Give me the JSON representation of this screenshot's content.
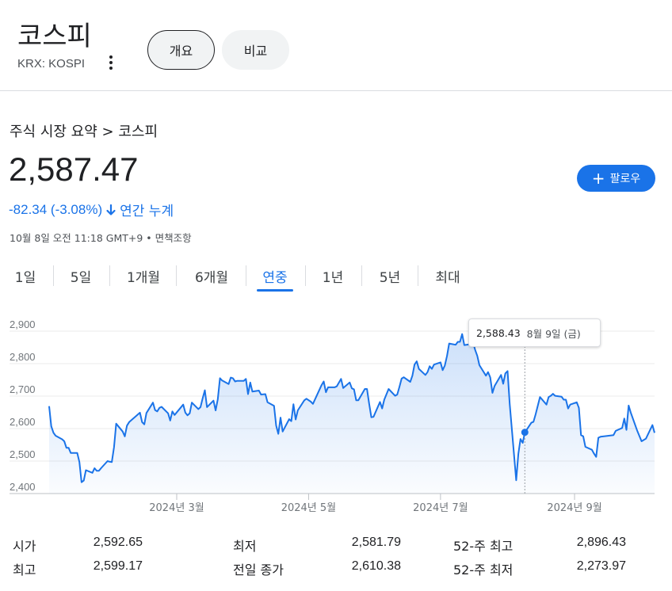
{
  "header": {
    "title": "코스피",
    "ticker": "KRX: KOSPI",
    "tabs": [
      {
        "label": "개요",
        "active": true
      },
      {
        "label": "비교",
        "active": false
      }
    ]
  },
  "summary": {
    "breadcrumb": "주식 시장 요약 > 코스피",
    "price": "2,587.47",
    "change": "-82.34 (-3.08%)",
    "change_period": "연간 누계",
    "timestamp": "10월 8일 오전 11:18 GMT+9 • 면책조항",
    "follow_label": "팔로우"
  },
  "ranges": [
    "1일",
    "5일",
    "1개월",
    "6개월",
    "연중",
    "1년",
    "5년",
    "최대"
  ],
  "active_range": "연중",
  "tooltip": {
    "value": "2,588.43",
    "date": "8월 9일 (금)"
  },
  "colors": {
    "accent": "#1a73e8",
    "line": "#1a73e8",
    "text": "#202124"
  },
  "chart_data": {
    "type": "area",
    "x_ticks": [
      "2024년 3월",
      "2024년 5월",
      "2024년 7월",
      "2024년 9월"
    ],
    "y_ticks": [
      "2,900",
      "2,800",
      "2,700",
      "2,600",
      "2,500",
      "2,400"
    ],
    "ylim": [
      2400,
      2900
    ],
    "grid": true,
    "x_range": [
      "2024-01-02",
      "2024-10-08"
    ],
    "x_tick_dates": [
      "2024-03-01",
      "2024-05-01",
      "2024-07-01",
      "2024-09-01"
    ],
    "highlight": {
      "date": "2024-08-09",
      "value": 2588.43
    },
    "points": [
      [
        "2024-01-02",
        2669
      ],
      [
        "2024-01-03",
        2607
      ],
      [
        "2024-01-04",
        2587
      ],
      [
        "2024-01-05",
        2578
      ],
      [
        "2024-01-08",
        2567
      ],
      [
        "2024-01-09",
        2561
      ],
      [
        "2024-01-10",
        2541
      ],
      [
        "2024-01-11",
        2541
      ],
      [
        "2024-01-12",
        2525
      ],
      [
        "2024-01-15",
        2525
      ],
      [
        "2024-01-16",
        2497
      ],
      [
        "2024-01-17",
        2435
      ],
      [
        "2024-01-18",
        2440
      ],
      [
        "2024-01-19",
        2472
      ],
      [
        "2024-01-22",
        2464
      ],
      [
        "2024-01-23",
        2478
      ],
      [
        "2024-01-24",
        2470
      ],
      [
        "2024-01-25",
        2470
      ],
      [
        "2024-01-26",
        2478
      ],
      [
        "2024-01-29",
        2500
      ],
      [
        "2024-01-30",
        2498
      ],
      [
        "2024-01-31",
        2497
      ],
      [
        "2024-02-01",
        2543
      ],
      [
        "2024-02-02",
        2615
      ],
      [
        "2024-02-05",
        2591
      ],
      [
        "2024-02-06",
        2576
      ],
      [
        "2024-02-07",
        2609
      ],
      [
        "2024-02-08",
        2620
      ],
      [
        "2024-02-13",
        2649
      ],
      [
        "2024-02-14",
        2620
      ],
      [
        "2024-02-15",
        2613
      ],
      [
        "2024-02-16",
        2648
      ],
      [
        "2024-02-19",
        2680
      ],
      [
        "2024-02-20",
        2657
      ],
      [
        "2024-02-21",
        2653
      ],
      [
        "2024-02-22",
        2664
      ],
      [
        "2024-02-23",
        2667
      ],
      [
        "2024-02-26",
        2647
      ],
      [
        "2024-02-27",
        2625
      ],
      [
        "2024-02-28",
        2653
      ],
      [
        "2024-02-29",
        2642
      ],
      [
        "2024-03-04",
        2674
      ],
      [
        "2024-03-05",
        2649
      ],
      [
        "2024-03-06",
        2641
      ],
      [
        "2024-03-07",
        2647
      ],
      [
        "2024-03-08",
        2680
      ],
      [
        "2024-03-11",
        2660
      ],
      [
        "2024-03-12",
        2666
      ],
      [
        "2024-03-13",
        2693
      ],
      [
        "2024-03-14",
        2718
      ],
      [
        "2024-03-15",
        2666
      ],
      [
        "2024-03-18",
        2686
      ],
      [
        "2024-03-19",
        2656
      ],
      [
        "2024-03-20",
        2690
      ],
      [
        "2024-03-21",
        2755
      ],
      [
        "2024-03-22",
        2748
      ],
      [
        "2024-03-25",
        2737
      ],
      [
        "2024-03-26",
        2757
      ],
      [
        "2024-03-27",
        2755
      ],
      [
        "2024-03-28",
        2745
      ],
      [
        "2024-03-29",
        2747
      ],
      [
        "2024-04-01",
        2747
      ],
      [
        "2024-04-02",
        2753
      ],
      [
        "2024-04-03",
        2706
      ],
      [
        "2024-04-04",
        2742
      ],
      [
        "2024-04-05",
        2714
      ],
      [
        "2024-04-08",
        2717
      ],
      [
        "2024-04-09",
        2705
      ],
      [
        "2024-04-11",
        2706
      ],
      [
        "2024-04-12",
        2681
      ],
      [
        "2024-04-15",
        2670
      ],
      [
        "2024-04-16",
        2609
      ],
      [
        "2024-04-17",
        2584
      ],
      [
        "2024-04-18",
        2634
      ],
      [
        "2024-04-19",
        2591
      ],
      [
        "2024-04-22",
        2629
      ],
      [
        "2024-04-23",
        2623
      ],
      [
        "2024-04-24",
        2675
      ],
      [
        "2024-04-25",
        2628
      ],
      [
        "2024-04-26",
        2656
      ],
      [
        "2024-04-29",
        2687
      ],
      [
        "2024-04-30",
        2692
      ],
      [
        "2024-05-02",
        2683
      ],
      [
        "2024-05-03",
        2676
      ],
      [
        "2024-05-07",
        2734
      ],
      [
        "2024-05-08",
        2745
      ],
      [
        "2024-05-09",
        2712
      ],
      [
        "2024-05-10",
        2727
      ],
      [
        "2024-05-13",
        2727
      ],
      [
        "2024-05-14",
        2730
      ],
      [
        "2024-05-16",
        2753
      ],
      [
        "2024-05-17",
        2725
      ],
      [
        "2024-05-20",
        2742
      ],
      [
        "2024-05-21",
        2724
      ],
      [
        "2024-05-22",
        2721
      ],
      [
        "2024-05-23",
        2687
      ],
      [
        "2024-05-24",
        2687
      ],
      [
        "2024-05-27",
        2722
      ],
      [
        "2024-05-28",
        2722
      ],
      [
        "2024-05-29",
        2677
      ],
      [
        "2024-05-30",
        2635
      ],
      [
        "2024-05-31",
        2636
      ],
      [
        "2024-06-03",
        2682
      ],
      [
        "2024-06-04",
        2662
      ],
      [
        "2024-06-05",
        2689
      ],
      [
        "2024-06-07",
        2722
      ],
      [
        "2024-06-10",
        2701
      ],
      [
        "2024-06-11",
        2705
      ],
      [
        "2024-06-12",
        2728
      ],
      [
        "2024-06-13",
        2754
      ],
      [
        "2024-06-14",
        2758
      ],
      [
        "2024-06-17",
        2744
      ],
      [
        "2024-06-18",
        2763
      ],
      [
        "2024-06-19",
        2797
      ],
      [
        "2024-06-20",
        2807
      ],
      [
        "2024-06-21",
        2784
      ],
      [
        "2024-06-24",
        2765
      ],
      [
        "2024-06-25",
        2774
      ],
      [
        "2024-06-26",
        2792
      ],
      [
        "2024-06-27",
        2784
      ],
      [
        "2024-06-28",
        2797
      ],
      [
        "2024-07-01",
        2804
      ],
      [
        "2024-07-02",
        2780
      ],
      [
        "2024-07-03",
        2794
      ],
      [
        "2024-07-04",
        2824
      ],
      [
        "2024-07-05",
        2862
      ],
      [
        "2024-07-08",
        2858
      ],
      [
        "2024-07-09",
        2867
      ],
      [
        "2024-07-10",
        2867
      ],
      [
        "2024-07-11",
        2891
      ],
      [
        "2024-07-12",
        2857
      ],
      [
        "2024-07-15",
        2860
      ],
      [
        "2024-07-16",
        2867
      ],
      [
        "2024-07-17",
        2843
      ],
      [
        "2024-07-18",
        2824
      ],
      [
        "2024-07-19",
        2795
      ],
      [
        "2024-07-22",
        2763
      ],
      [
        "2024-07-23",
        2774
      ],
      [
        "2024-07-24",
        2758
      ],
      [
        "2024-07-25",
        2710
      ],
      [
        "2024-07-26",
        2731
      ],
      [
        "2024-07-29",
        2765
      ],
      [
        "2024-07-30",
        2738
      ],
      [
        "2024-07-31",
        2770
      ],
      [
        "2024-08-01",
        2777
      ],
      [
        "2024-08-02",
        2676
      ],
      [
        "2024-08-05",
        2441
      ],
      [
        "2024-08-06",
        2522
      ],
      [
        "2024-08-07",
        2568
      ],
      [
        "2024-08-08",
        2556
      ],
      [
        "2024-08-09",
        2588
      ],
      [
        "2024-08-12",
        2618
      ],
      [
        "2024-08-13",
        2621
      ],
      [
        "2024-08-14",
        2644
      ],
      [
        "2024-08-16",
        2697
      ],
      [
        "2024-08-19",
        2674
      ],
      [
        "2024-08-20",
        2697
      ],
      [
        "2024-08-21",
        2701
      ],
      [
        "2024-08-22",
        2707
      ],
      [
        "2024-08-23",
        2701
      ],
      [
        "2024-08-26",
        2698
      ],
      [
        "2024-08-27",
        2689
      ],
      [
        "2024-08-28",
        2689
      ],
      [
        "2024-08-29",
        2662
      ],
      [
        "2024-08-30",
        2674
      ],
      [
        "2024-09-02",
        2681
      ],
      [
        "2024-09-03",
        2664
      ],
      [
        "2024-09-04",
        2580
      ],
      [
        "2024-09-05",
        2576
      ],
      [
        "2024-09-06",
        2544
      ],
      [
        "2024-09-09",
        2535
      ],
      [
        "2024-09-10",
        2523
      ],
      [
        "2024-09-11",
        2513
      ],
      [
        "2024-09-12",
        2572
      ],
      [
        "2024-09-13",
        2575
      ],
      [
        "2024-09-19",
        2580
      ],
      [
        "2024-09-20",
        2593
      ],
      [
        "2024-09-23",
        2602
      ],
      [
        "2024-09-24",
        2631
      ],
      [
        "2024-09-25",
        2596
      ],
      [
        "2024-09-26",
        2671
      ],
      [
        "2024-09-27",
        2649
      ],
      [
        "2024-09-30",
        2593
      ],
      [
        "2024-10-02",
        2561
      ],
      [
        "2024-10-04",
        2569
      ],
      [
        "2024-10-07",
        2611
      ],
      [
        "2024-10-08",
        2587
      ]
    ]
  },
  "stats": [
    {
      "label": "시가",
      "value": "2,592.65"
    },
    {
      "label": "최고",
      "value": "2,599.17"
    },
    {
      "label": "최저",
      "value": "2,581.79"
    },
    {
      "label": "전일 종가",
      "value": "2,610.38"
    },
    {
      "label": "52-주 최고",
      "value": "2,896.43"
    },
    {
      "label": "52-주 최저",
      "value": "2,273.97"
    }
  ]
}
